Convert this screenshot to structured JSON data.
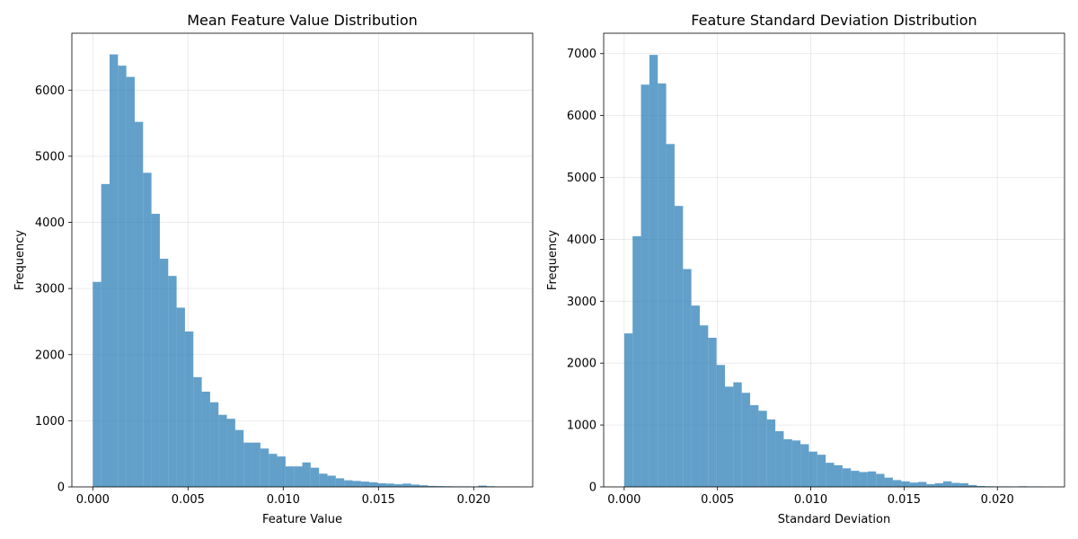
{
  "chart_data": [
    {
      "type": "bar",
      "title": "Mean Feature Value Distribution",
      "xlabel": "Feature Value",
      "ylabel": "Frequency",
      "xlim": [
        -0.0011,
        0.0231
      ],
      "ylim": [
        0,
        6860
      ],
      "xticks": [
        0.0,
        0.005,
        0.01,
        0.015,
        0.02
      ],
      "xtick_labels": [
        "0.000",
        "0.005",
        "0.010",
        "0.015",
        "0.020"
      ],
      "yticks": [
        0,
        1000,
        2000,
        3000,
        4000,
        5000,
        6000
      ],
      "ytick_labels": [
        "0",
        "1000",
        "2000",
        "3000",
        "4000",
        "5000",
        "6000"
      ],
      "grid": true,
      "color": "#1f77b4",
      "bin_start": 0.0,
      "bin_width": 0.00044,
      "values": [
        3100,
        4580,
        6540,
        6370,
        6200,
        5520,
        4750,
        4130,
        3450,
        3190,
        2710,
        2350,
        1660,
        1440,
        1280,
        1090,
        1030,
        860,
        670,
        670,
        580,
        500,
        460,
        310,
        310,
        370,
        290,
        200,
        170,
        130,
        100,
        90,
        80,
        70,
        55,
        50,
        40,
        50,
        35,
        25,
        15,
        12,
        10,
        8,
        8,
        6,
        20,
        10,
        6,
        5,
        5
      ]
    },
    {
      "type": "bar",
      "title": "Feature Standard Deviation Distribution",
      "xlabel": "Standard Deviation",
      "ylabel": "Frequency",
      "xlim": [
        -0.0011,
        0.0236
      ],
      "ylim": [
        0,
        7330
      ],
      "xticks": [
        0.0,
        0.005,
        0.01,
        0.015,
        0.02
      ],
      "xtick_labels": [
        "0.000",
        "0.005",
        "0.010",
        "0.015",
        "0.020"
      ],
      "yticks": [
        0,
        1000,
        2000,
        3000,
        4000,
        5000,
        6000,
        7000
      ],
      "ytick_labels": [
        "0",
        "1000",
        "2000",
        "3000",
        "4000",
        "5000",
        "6000",
        "7000"
      ],
      "grid": true,
      "color": "#1f77b4",
      "bin_start": 0.0,
      "bin_width": 0.00045,
      "values": [
        2480,
        4050,
        6500,
        6980,
        6520,
        5540,
        4540,
        3520,
        2930,
        2610,
        2410,
        1970,
        1620,
        1690,
        1520,
        1320,
        1230,
        1090,
        900,
        770,
        750,
        690,
        570,
        520,
        390,
        350,
        300,
        260,
        240,
        250,
        210,
        150,
        110,
        90,
        70,
        80,
        45,
        60,
        90,
        65,
        60,
        30,
        15,
        10,
        8,
        8,
        5,
        10,
        6,
        5
      ]
    }
  ]
}
